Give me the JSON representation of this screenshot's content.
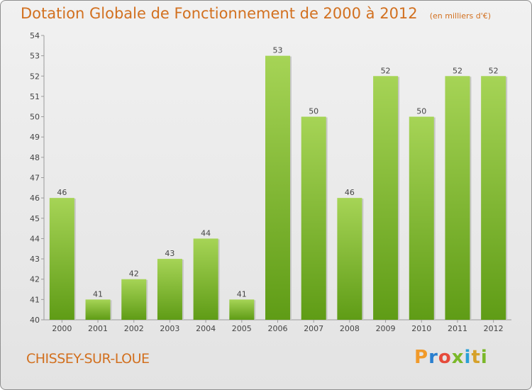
{
  "chart_data": {
    "type": "bar",
    "title": "Dotation Globale de Fonctionnement de 2000 à 2012",
    "subtitle": "(en milliers d'€)",
    "categories": [
      "2000",
      "2001",
      "2002",
      "2003",
      "2004",
      "2005",
      "2006",
      "2007",
      "2008",
      "2009",
      "2010",
      "2011",
      "2012"
    ],
    "values": [
      46,
      41,
      42,
      43,
      44,
      41,
      53,
      50,
      46,
      52,
      50,
      52,
      52
    ],
    "ylim": [
      40,
      54
    ],
    "yticks": [
      40,
      41,
      42,
      43,
      44,
      45,
      46,
      47,
      48,
      49,
      50,
      51,
      52,
      53,
      54
    ],
    "grid": false,
    "bar_color_top": "#a6d456",
    "bar_color_bottom": "#5f9c16"
  },
  "commune": "CHISSEY-SUR-LOUE",
  "brand": {
    "text": "Proxiti",
    "letters": [
      "P",
      "r",
      "o",
      "x",
      "i",
      "t",
      "i"
    ]
  }
}
